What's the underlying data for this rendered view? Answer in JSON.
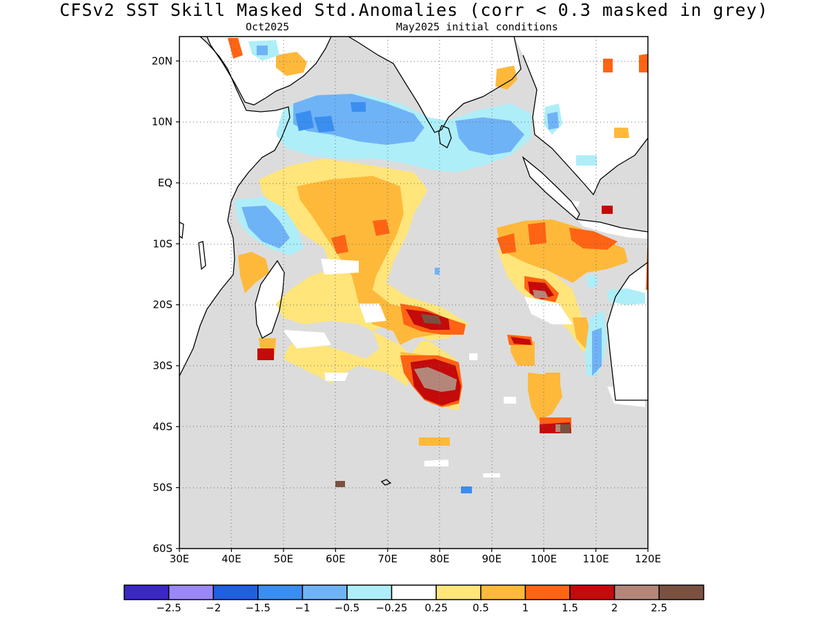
{
  "title": "CFSv2  SST Skill Masked Std.Anomalies (corr < 0.3 masked in grey)",
  "subtitle_left": "Oct2025",
  "subtitle_right": "May2025 initial conditions",
  "map": {
    "lon_range": [
      30,
      120
    ],
    "lat_range": [
      -60,
      24
    ],
    "x_ticks": [
      "30E",
      "40E",
      "50E",
      "60E",
      "70E",
      "80E",
      "90E",
      "100E",
      "110E",
      "120E"
    ],
    "y_ticks": [
      "20N",
      "10N",
      "EQ",
      "10S",
      "20S",
      "30S",
      "40S",
      "50S",
      "60S"
    ],
    "masked_color": "#dcdcdc",
    "land_color": "#ffffff",
    "grid": "dotted"
  },
  "colorbar": {
    "colors": [
      "#3b27c4",
      "#9b87f5",
      "#1f5fe0",
      "#3a8ef0",
      "#6fb3f7",
      "#aeeef8",
      "#ffffff",
      "#ffe57a",
      "#ffb93a",
      "#ff6414",
      "#c40a0a",
      "#b4867a",
      "#7a5140"
    ],
    "labels": [
      "−2.5",
      "−2",
      "−1.5",
      "−1",
      "−0.5",
      "−0.25",
      "0.25",
      "0.5",
      "1",
      "1.5",
      "2",
      "2.5"
    ]
  }
}
